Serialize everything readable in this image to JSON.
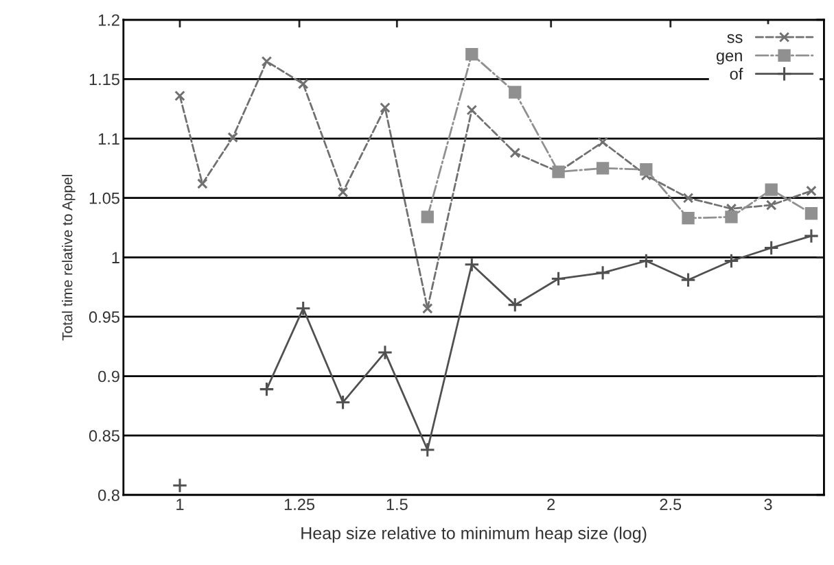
{
  "chart_data": {
    "type": "line",
    "xlabel": "Heap size relative to minimum heap size (log)",
    "ylabel": "Total time relative to Appel",
    "x": [
      1.0,
      1.043,
      1.104,
      1.176,
      1.259,
      1.356,
      1.467,
      1.588,
      1.725,
      1.87,
      2.028,
      2.203,
      2.389,
      2.584,
      2.801,
      3.018,
      3.252
    ],
    "series": [
      {
        "name": "ss",
        "color": "#707070",
        "line_style": "dashed",
        "marker": "cross",
        "values": [
          1.136,
          1.062,
          1.101,
          1.165,
          1.146,
          1.055,
          1.126,
          0.957,
          1.124,
          1.088,
          1.072,
          1.097,
          1.069,
          1.05,
          1.041,
          1.044,
          1.056
        ]
      },
      {
        "name": "gen",
        "color": "#909090",
        "line_style": "dashdot",
        "marker": "square",
        "values": [
          null,
          null,
          null,
          null,
          null,
          null,
          null,
          1.034,
          1.171,
          1.139,
          1.072,
          1.075,
          1.074,
          1.033,
          1.034,
          1.057,
          1.037
        ]
      },
      {
        "name": "of",
        "color": "#505050",
        "line_style": "solid",
        "marker": "plus",
        "values": [
          0.808,
          null,
          null,
          0.889,
          0.957,
          0.878,
          0.92,
          0.838,
          0.994,
          0.96,
          0.982,
          0.987,
          0.997,
          0.981,
          0.997,
          1.008,
          1.018
        ]
      }
    ],
    "log": "x",
    "xlim": [
      0.9,
      3.33
    ],
    "xticks": [
      1,
      1.25,
      1.5,
      2,
      2.5,
      3
    ],
    "ylim": [
      0.8,
      1.2
    ],
    "yticks": [
      0.8,
      0.85,
      0.9,
      0.95,
      1,
      1.05,
      1.1,
      1.15,
      1.2
    ],
    "grid": "y",
    "legend": "top right"
  }
}
